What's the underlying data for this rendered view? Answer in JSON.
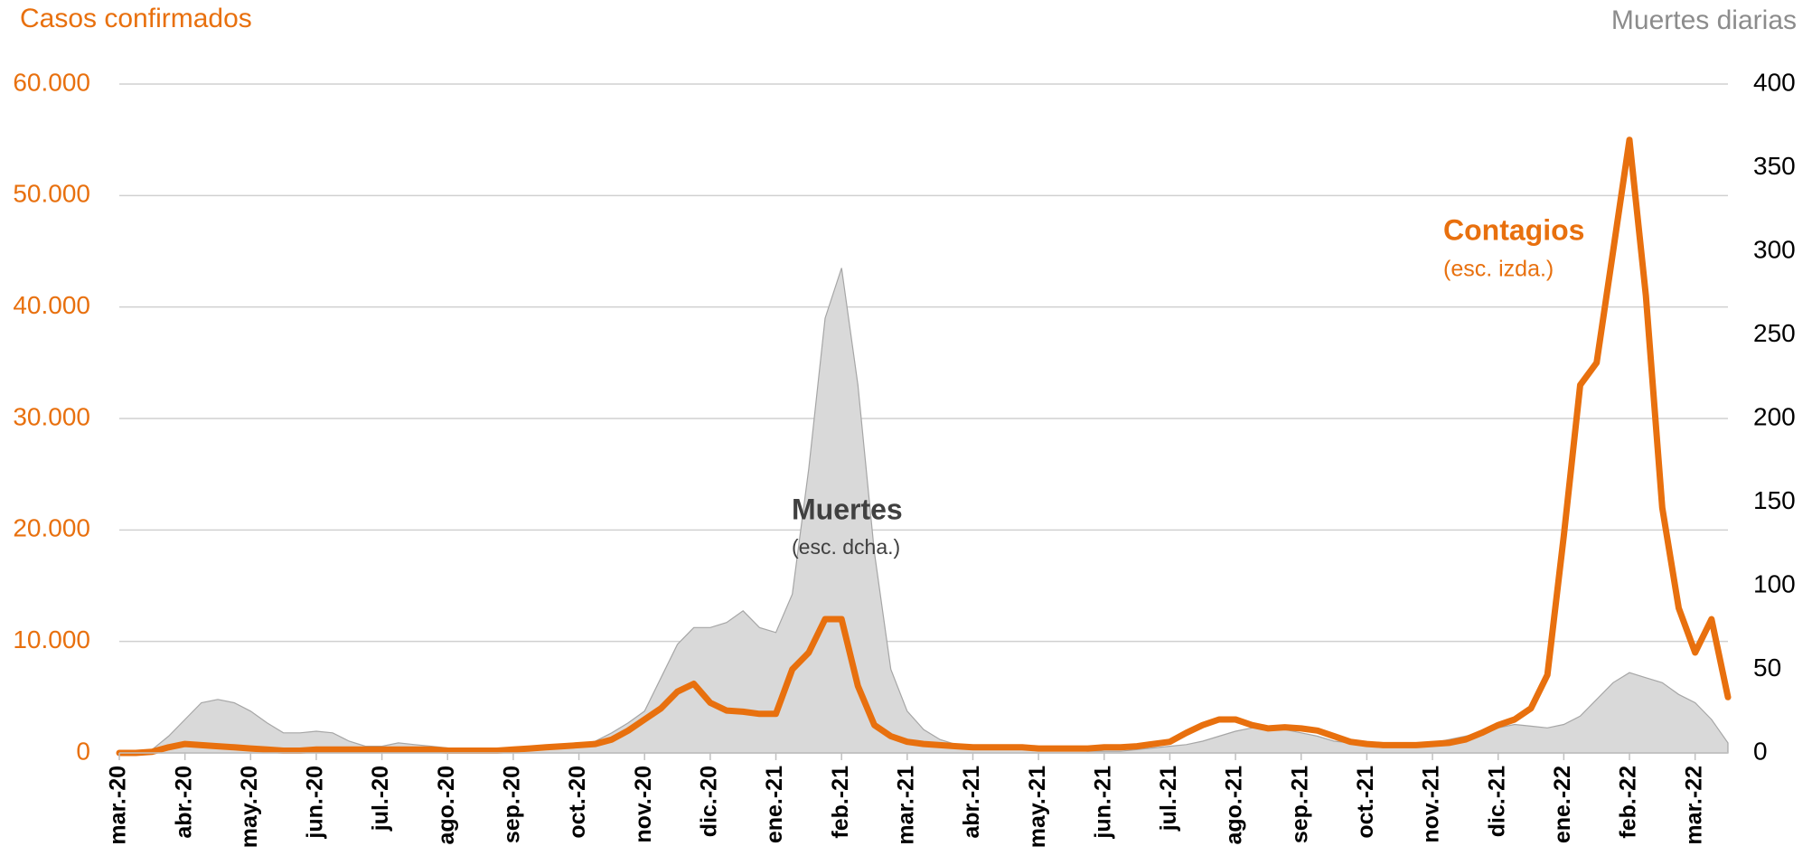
{
  "chart_data": {
    "type": "line-area",
    "y_axis_title": "Casos confirmados",
    "y2_axis_title": "Muertes diarias",
    "annotations": [
      {
        "text": "Contagios",
        "series": 0
      },
      {
        "text": "(esc. izda.)",
        "series": 0
      },
      {
        "text": "Muertes",
        "series": 1
      },
      {
        "text": "(esc. dcha.)",
        "series": 1
      }
    ],
    "categories": [
      "mar.-20",
      null,
      null,
      null,
      "abr.-20",
      null,
      null,
      null,
      "may.-20",
      null,
      null,
      null,
      "jun.-20",
      null,
      null,
      null,
      "jul.-20",
      null,
      null,
      null,
      "ago.-20",
      null,
      null,
      null,
      "sep.-20",
      null,
      null,
      null,
      "oct.-20",
      null,
      null,
      null,
      "nov.-20",
      null,
      null,
      null,
      "dic.-20",
      null,
      null,
      null,
      "ene.-21",
      null,
      null,
      null,
      "feb.-21",
      null,
      null,
      null,
      "mar.-21",
      null,
      null,
      null,
      "abr.-21",
      null,
      null,
      null,
      "may.-21",
      null,
      null,
      null,
      "jun.-21",
      null,
      null,
      null,
      "jul.-21",
      null,
      null,
      null,
      "ago.-21",
      null,
      null,
      null,
      "sep.-21",
      null,
      null,
      null,
      "oct.-21",
      null,
      null,
      null,
      "nov.-21",
      null,
      null,
      null,
      "dic.-21",
      null,
      null,
      null,
      "ene.-22",
      null,
      null,
      null,
      "feb.-22",
      null,
      null,
      null,
      "mar.-22",
      null,
      null
    ],
    "series": [
      {
        "name": "Contagios",
        "color": "#e8700e",
        "kind": "line",
        "values": [
          0,
          0,
          100,
          500,
          800,
          700,
          600,
          500,
          400,
          300,
          200,
          200,
          300,
          300,
          300,
          300,
          300,
          300,
          300,
          300,
          200,
          200,
          200,
          200,
          300,
          400,
          500,
          600,
          700,
          800,
          1200,
          2000,
          3000,
          4000,
          5500,
          6200,
          4500,
          3800,
          3700,
          3500,
          3500,
          7500,
          9000,
          12000,
          12000,
          6000,
          2500,
          1500,
          1000,
          800,
          700,
          600,
          500,
          500,
          500,
          500,
          400,
          400,
          400,
          400,
          500,
          500,
          600,
          800,
          1000,
          1800,
          2500,
          3000,
          3000,
          2500,
          2200,
          2300,
          2200,
          2000,
          1500,
          1000,
          800,
          700,
          700,
          700,
          800,
          900,
          1200,
          1800,
          2500,
          3000,
          4000,
          7000,
          19500,
          33000,
          35000,
          45000,
          55000,
          41000,
          22000,
          13000,
          9000,
          12000,
          5000
        ]
      },
      {
        "name": "Muertes",
        "color": "#d9d9d9",
        "kind": "area",
        "axis": "y2",
        "values": [
          0,
          0,
          2,
          10,
          20,
          30,
          32,
          30,
          25,
          18,
          12,
          12,
          13,
          12,
          7,
          4,
          4,
          6,
          5,
          4,
          3,
          2,
          2,
          2,
          2,
          3,
          3,
          4,
          5,
          7,
          12,
          18,
          25,
          45,
          65,
          75,
          75,
          78,
          85,
          75,
          72,
          95,
          170,
          260,
          290,
          220,
          120,
          50,
          25,
          14,
          8,
          5,
          4,
          3,
          2,
          2,
          2,
          2,
          2,
          1,
          1,
          1,
          2,
          3,
          4,
          5,
          7,
          10,
          13,
          15,
          15,
          14,
          12,
          10,
          7,
          6,
          6,
          6,
          5,
          5,
          6,
          8,
          10,
          12,
          15,
          17,
          16,
          15,
          17,
          22,
          32,
          42,
          48,
          45,
          42,
          35,
          30,
          20,
          6
        ]
      }
    ],
    "ylim": [
      0,
      60000
    ],
    "yticks": [
      0,
      {
        "value": 10000,
        "label": "10.000"
      },
      {
        "value": 20000,
        "label": "20.000"
      },
      {
        "value": 30000,
        "label": "30.000"
      },
      {
        "value": 40000,
        "label": "40.000"
      },
      {
        "value": 50000,
        "label": "50.000"
      },
      {
        "value": 60000,
        "label": "60.000"
      }
    ],
    "y2lim": [
      0,
      400
    ],
    "y2ticks": [
      0,
      50,
      100,
      150,
      200,
      250,
      300,
      350,
      400
    ],
    "grid": true
  }
}
